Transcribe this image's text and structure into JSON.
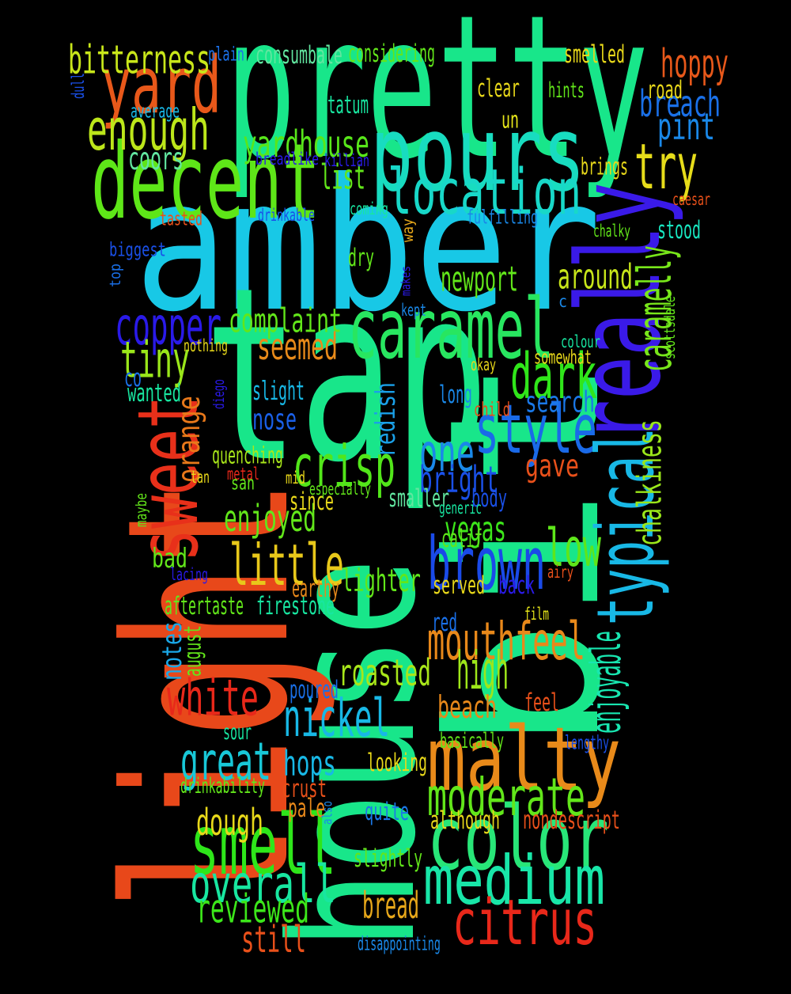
{
  "words": [
    {
      "text": "amber",
      "color": "#18c8e6"
    },
    {
      "text": "tap",
      "color": "#18e68a"
    },
    {
      "text": "house",
      "color": "#18e68a"
    },
    {
      "text": "pretty",
      "color": "#18e68a"
    },
    {
      "text": "bit",
      "color": "#18e68a"
    },
    {
      "text": "light",
      "color": "#e8481a"
    },
    {
      "text": "really",
      "color": "#3a1ae8"
    },
    {
      "text": "pours",
      "color": "#18dcc0"
    },
    {
      "text": "decent",
      "color": "#5ee618"
    },
    {
      "text": "caramel",
      "color": "#28e660"
    },
    {
      "text": "yard",
      "color": "#e8581a"
    },
    {
      "text": "malty",
      "color": "#e88a1a"
    },
    {
      "text": "color",
      "color": "#28e678"
    },
    {
      "text": "medium",
      "color": "#18e6a8"
    },
    {
      "text": "smell",
      "color": "#2ee61a"
    },
    {
      "text": "location",
      "color": "#18d8c8"
    },
    {
      "text": "sweet",
      "color": "#e8301a"
    },
    {
      "text": "style",
      "color": "#1a6ae8"
    },
    {
      "text": "brown",
      "color": "#1a4ae8"
    },
    {
      "text": "citrus",
      "color": "#e8281a"
    },
    {
      "text": "typical",
      "color": "#18b8e6"
    },
    {
      "text": "overall",
      "color": "#18e6a0"
    },
    {
      "text": "enough",
      "color": "#bce61a"
    },
    {
      "text": "try",
      "color": "#e6dc1a"
    },
    {
      "text": "dark",
      "color": "#30e61a"
    },
    {
      "text": "crisp",
      "color": "#52e61a"
    },
    {
      "text": "moderate",
      "color": "#62e61a"
    },
    {
      "text": "mouthfeel",
      "color": "#e8881a"
    },
    {
      "text": "little",
      "color": "#e8c81a"
    },
    {
      "text": "copper",
      "color": "#2a1ae8"
    },
    {
      "text": "nickel",
      "color": "#18b8e6"
    },
    {
      "text": "great",
      "color": "#18c8d8"
    },
    {
      "text": "high",
      "color": "#9ee61a"
    },
    {
      "text": "low",
      "color": "#5ee61a"
    },
    {
      "text": "one",
      "color": "#1a88e8"
    },
    {
      "text": "tiny",
      "color": "#9ae61a"
    },
    {
      "text": "white",
      "color": "#e8281a"
    },
    {
      "text": "reviewed",
      "color": "#3ce61a"
    },
    {
      "text": "yardhouse",
      "color": "#58e61a"
    },
    {
      "text": "caramelly",
      "color": "#78e61a"
    },
    {
      "text": "chalkiness",
      "color": "#9ae61a"
    },
    {
      "text": "bitterness",
      "color": "#c8e61a"
    },
    {
      "text": "hoppy",
      "color": "#e8581a"
    },
    {
      "text": "breach",
      "color": "#1a70e8"
    },
    {
      "text": "pint",
      "color": "#1a88e8"
    },
    {
      "text": "enjoyable",
      "color": "#18e6b0"
    },
    {
      "text": "roasted",
      "color": "#a8e61a"
    },
    {
      "text": "bread",
      "color": "#e8a81a"
    },
    {
      "text": "still",
      "color": "#e8501a"
    },
    {
      "text": "enjoyed",
      "color": "#62e61a"
    },
    {
      "text": "bright",
      "color": "#1a50e8"
    },
    {
      "text": "complaint",
      "color": "#62e61a"
    },
    {
      "text": "seemed",
      "color": "#e88a1a"
    },
    {
      "text": "list",
      "color": "#62e61a"
    },
    {
      "text": "newport",
      "color": "#62e61a"
    },
    {
      "text": "around",
      "color": "#c8e61a"
    },
    {
      "text": "dough",
      "color": "#e8d81a"
    },
    {
      "text": "hops",
      "color": "#18b8e6"
    },
    {
      "text": "vegas",
      "color": "#3ce61a"
    },
    {
      "text": "lighter",
      "color": "#62e61a"
    },
    {
      "text": "beach",
      "color": "#e8881a"
    },
    {
      "text": "coors",
      "color": "#62e6a0"
    },
    {
      "text": "gave",
      "color": "#e8501a"
    },
    {
      "text": "search",
      "color": "#1a78e8"
    },
    {
      "text": "orange",
      "color": "#e8781a"
    },
    {
      "text": "redish",
      "color": "#1aa0e8"
    },
    {
      "text": "nose",
      "color": "#1a60e8"
    },
    {
      "text": "notes",
      "color": "#1aa8e8"
    },
    {
      "text": "slight",
      "color": "#18b8e6"
    },
    {
      "text": "consumbale",
      "color": "#62e6a0"
    },
    {
      "text": "considering",
      "color": "#62e61a"
    },
    {
      "text": "smelled",
      "color": "#e8d81a"
    },
    {
      "text": "clear",
      "color": "#e8d81a"
    },
    {
      "text": "tatum",
      "color": "#18e6a0"
    },
    {
      "text": "road",
      "color": "#e8d81a"
    },
    {
      "text": "hints",
      "color": "#62e61a"
    },
    {
      "text": "un",
      "color": "#e8e81a"
    },
    {
      "text": "brings",
      "color": "#e8d81a"
    },
    {
      "text": "stood",
      "color": "#18e6c0"
    },
    {
      "text": "dry",
      "color": "#62e61a"
    },
    {
      "text": "bad",
      "color": "#62e61a"
    },
    {
      "text": "calif",
      "color": "#62e61a"
    },
    {
      "text": "since",
      "color": "#e8d81a"
    },
    {
      "text": "smaller",
      "color": "#62e6a0"
    },
    {
      "text": "body",
      "color": "#1a50e8"
    },
    {
      "text": "quenching",
      "color": "#a8e61a"
    },
    {
      "text": "served",
      "color": "#e8d81a"
    },
    {
      "text": "back",
      "color": "#2a1ae8"
    },
    {
      "text": "earthy",
      "color": "#e8881a"
    },
    {
      "text": "aftertaste",
      "color": "#62e61a"
    },
    {
      "text": "firestone",
      "color": "#18e6a0"
    },
    {
      "text": "red",
      "color": "#1a70e8"
    },
    {
      "text": "poured",
      "color": "#1a70e8"
    },
    {
      "text": "feel",
      "color": "#e8501a"
    },
    {
      "text": "looking",
      "color": "#e8d81a"
    },
    {
      "text": "crust",
      "color": "#e8501a"
    },
    {
      "text": "pale",
      "color": "#e8881a"
    },
    {
      "text": "quite",
      "color": "#1a78e8"
    },
    {
      "text": "although",
      "color": "#e8d81a"
    },
    {
      "text": "nondescript",
      "color": "#e8501a"
    },
    {
      "text": "slightly",
      "color": "#62e61a"
    },
    {
      "text": "long",
      "color": "#1a88e8"
    },
    {
      "text": "wanted",
      "color": "#18e6a0"
    },
    {
      "text": "co",
      "color": "#1a70e8"
    },
    {
      "text": "august",
      "color": "#62e61a"
    },
    {
      "text": "disappointing",
      "color": "#1a88e8"
    },
    {
      "text": "sour",
      "color": "#18e6a0"
    },
    {
      "text": "basically",
      "color": "#62e61a"
    },
    {
      "text": "lengthy",
      "color": "#1a50e8"
    },
    {
      "text": "drinkability",
      "color": "#62e61a"
    },
    {
      "text": "plain",
      "color": "#1a70e8"
    },
    {
      "text": "dull",
      "color": "#1a50e8"
    },
    {
      "text": "average",
      "color": "#18b8e6"
    },
    {
      "text": "breadlike",
      "color": "#2a1ae8"
    },
    {
      "text": "killian",
      "color": "#2a1ae8"
    },
    {
      "text": "tasted",
      "color": "#e8501a"
    },
    {
      "text": "drinkable",
      "color": "#1a50e8"
    },
    {
      "text": "coming",
      "color": "#18e6a0"
    },
    {
      "text": "fulfilling",
      "color": "#1a88e8"
    },
    {
      "text": "caesar",
      "color": "#e8501a"
    },
    {
      "text": "chalky",
      "color": "#62e61a"
    },
    {
      "text": "biggest",
      "color": "#1a50e8"
    },
    {
      "text": "top",
      "color": "#1a70e8"
    },
    {
      "text": "way",
      "color": "#e8a81a"
    },
    {
      "text": "makes",
      "color": "#2a1ae8"
    },
    {
      "text": "kept",
      "color": "#1a88e8"
    },
    {
      "text": "c",
      "color": "#1a88e8"
    },
    {
      "text": "scottsdale",
      "color": "#62e61a"
    },
    {
      "text": "colour",
      "color": "#18e6a0"
    },
    {
      "text": "nothing",
      "color": "#e8d81a"
    },
    {
      "text": "okay",
      "color": "#e8d81a"
    },
    {
      "text": "somewhat",
      "color": "#e8d81a"
    },
    {
      "text": "diego",
      "color": "#2a1ae8"
    },
    {
      "text": "child",
      "color": "#e8501a"
    },
    {
      "text": "mid",
      "color": "#e8d81a"
    },
    {
      "text": "tan",
      "color": "#e8d81a"
    },
    {
      "text": "metal",
      "color": "#e8281a"
    },
    {
      "text": "san",
      "color": "#62e61a"
    },
    {
      "text": "especially",
      "color": "#62e61a"
    },
    {
      "text": "generic",
      "color": "#18e6a0"
    },
    {
      "text": "maybe",
      "color": "#62e61a"
    },
    {
      "text": "lacing",
      "color": "#2a1ae8"
    },
    {
      "text": "airy",
      "color": "#e8501a"
    },
    {
      "text": "film",
      "color": "#e8e81a"
    },
    {
      "text": "also",
      "color": "#1a88e8"
    }
  ]
}
